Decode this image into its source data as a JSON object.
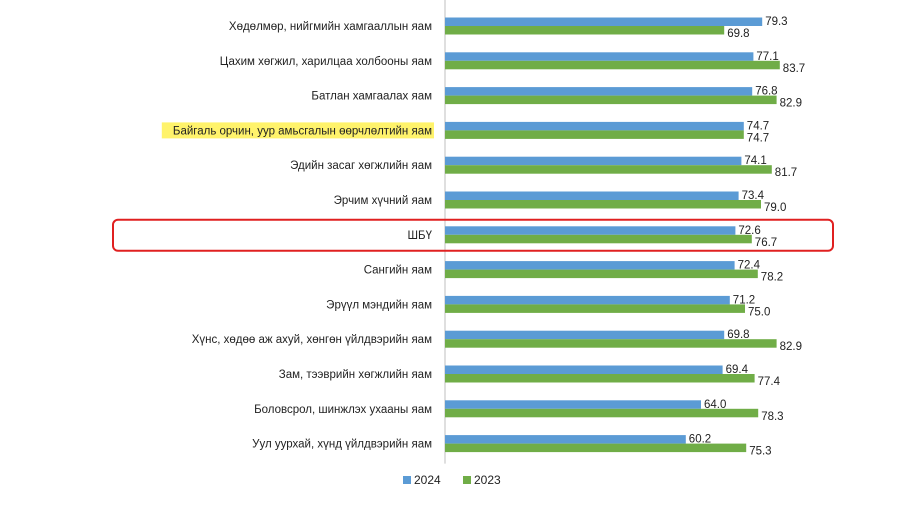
{
  "chart_data": {
    "type": "bar",
    "orientation": "horizontal",
    "categories": [
      "Хөдөлмөр, нийгмийн хамгааллын яам",
      "Цахим хөгжил, харилцаа холбооны яам",
      "Батлан хамгаалах яам",
      "Байгаль орчин, уур амьсгалын өөрчлөлтийн яам",
      "Эдийн засаг хөгжлийн яам",
      "Эрчим хүчний яам",
      "ШБҮ",
      "Сангийн яам",
      "Эрүүл мэндийн яам",
      "Хүнс, хөдөө аж ахуй, хөнгөн үйлдвэрийн яам",
      "Зам, тээврийн хөгжлийн яам",
      "Боловсрол, шинжлэх ухааны яам",
      "Уул уурхай, хүнд үйлдвэрийн яам"
    ],
    "series": [
      {
        "name": "2024",
        "values": [
          79.3,
          77.1,
          76.8,
          74.7,
          74.1,
          73.4,
          72.6,
          72.4,
          71.2,
          69.8,
          69.4,
          64.0,
          60.2
        ]
      },
      {
        "name": "2023",
        "values": [
          69.8,
          83.7,
          82.9,
          74.7,
          81.7,
          79.0,
          76.7,
          78.2,
          75.0,
          82.9,
          77.4,
          78.3,
          75.3
        ]
      }
    ],
    "value_labels": {
      "2024": [
        "79.3",
        "77.1",
        "76.8",
        "74.7",
        "74.1",
        "73.4",
        "72.6",
        "72.4",
        "71.2",
        "69.8",
        "69.4",
        "64.0",
        "60.2"
      ],
      "2023": [
        "69.8",
        "83.7",
        "82.9",
        "74.7",
        "81.7",
        "79.0",
        "76.7",
        "78.2",
        "75.0",
        "82.9",
        "77.4",
        "78.3",
        "75.3"
      ]
    },
    "xlim": [
      0,
      100
    ],
    "grid": false,
    "legend_position": "bottom",
    "highlighted_category": "Байгаль орчин, уур амьсгалын өөрчлөлтийн яам",
    "boxed_category": "ШБҮ"
  },
  "colors": {
    "series_2024": "#5b9bd5",
    "series_2023": "#70ad47",
    "highlight": "#fff36b",
    "box": "#e02020",
    "axis": "#bfbfbf"
  }
}
